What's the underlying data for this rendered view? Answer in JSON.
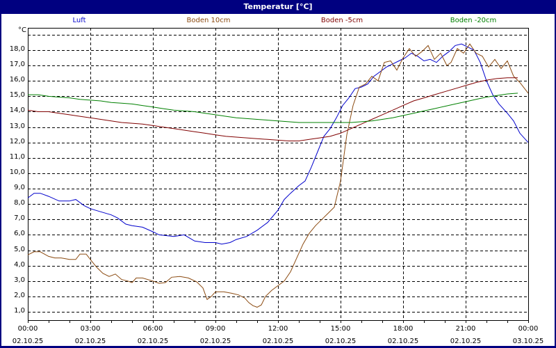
{
  "window": {
    "title": "Temperatur [°C]"
  },
  "chart_data": {
    "type": "line",
    "title": "Temperatur [°C]",
    "xlabel": "",
    "ylabel": "°C",
    "ylim": [
      0.5,
      19.5
    ],
    "xlim_hours": [
      0,
      24
    ],
    "grid": true,
    "legend_position": "top",
    "y_ticks": [
      "1,0",
      "2,0",
      "3,0",
      "4,0",
      "5,0",
      "6,0",
      "7,0",
      "8,0",
      "9,0",
      "10,0",
      "11,0",
      "12,0",
      "13,0",
      "14,0",
      "15,0",
      "16,0",
      "17,0",
      "18,0"
    ],
    "x_ticks": [
      {
        "time": "00:00",
        "date": "02.10.25"
      },
      {
        "time": "03:00",
        "date": "02.10.25"
      },
      {
        "time": "06:00",
        "date": "02.10.25"
      },
      {
        "time": "09:00",
        "date": "02.10.25"
      },
      {
        "time": "12:00",
        "date": "02.10.25"
      },
      {
        "time": "15:00",
        "date": "02.10.25"
      },
      {
        "time": "18:00",
        "date": "02.10.25"
      },
      {
        "time": "21:00",
        "date": "02.10.25"
      },
      {
        "time": "00:00",
        "date": "03.10.25"
      }
    ],
    "series": [
      {
        "name": "Luft",
        "color": "#0000CC",
        "points": [
          [
            0,
            8.4
          ],
          [
            0.3,
            8.7
          ],
          [
            0.6,
            8.7
          ],
          [
            1.0,
            8.5
          ],
          [
            1.5,
            8.2
          ],
          [
            2.0,
            8.2
          ],
          [
            2.3,
            8.3
          ],
          [
            2.7,
            7.9
          ],
          [
            3.0,
            7.7
          ],
          [
            3.5,
            7.5
          ],
          [
            4.0,
            7.3
          ],
          [
            4.3,
            7.1
          ],
          [
            4.7,
            6.7
          ],
          [
            5.0,
            6.6
          ],
          [
            5.5,
            6.5
          ],
          [
            6.0,
            6.2
          ],
          [
            6.3,
            6.0
          ],
          [
            7.0,
            5.9
          ],
          [
            7.5,
            6.0
          ],
          [
            8.0,
            5.6
          ],
          [
            8.5,
            5.5
          ],
          [
            9.0,
            5.5
          ],
          [
            9.3,
            5.4
          ],
          [
            9.7,
            5.5
          ],
          [
            10.0,
            5.7
          ],
          [
            10.5,
            5.9
          ],
          [
            11.0,
            6.3
          ],
          [
            11.5,
            6.8
          ],
          [
            12.0,
            7.6
          ],
          [
            12.3,
            8.3
          ],
          [
            12.6,
            8.7
          ],
          [
            13.0,
            9.2
          ],
          [
            13.3,
            9.5
          ],
          [
            13.6,
            10.4
          ],
          [
            13.9,
            11.4
          ],
          [
            14.2,
            12.4
          ],
          [
            14.5,
            12.9
          ],
          [
            14.8,
            13.6
          ],
          [
            15.1,
            14.4
          ],
          [
            15.4,
            14.9
          ],
          [
            15.7,
            15.5
          ],
          [
            16.0,
            15.6
          ],
          [
            16.3,
            15.8
          ],
          [
            16.6,
            16.3
          ],
          [
            16.9,
            16.6
          ],
          [
            17.2,
            16.9
          ],
          [
            17.5,
            17.1
          ],
          [
            17.8,
            17.3
          ],
          [
            18.1,
            17.5
          ],
          [
            18.4,
            17.8
          ],
          [
            18.7,
            17.6
          ],
          [
            19.0,
            17.3
          ],
          [
            19.3,
            17.4
          ],
          [
            19.6,
            17.2
          ],
          [
            19.9,
            17.6
          ],
          [
            20.2,
            17.9
          ],
          [
            20.5,
            18.3
          ],
          [
            20.8,
            18.4
          ],
          [
            21.1,
            18.2
          ],
          [
            21.4,
            18.0
          ],
          [
            21.7,
            17.2
          ],
          [
            22.0,
            16.0
          ],
          [
            22.3,
            15.1
          ],
          [
            22.6,
            14.5
          ],
          [
            23.0,
            13.9
          ],
          [
            23.3,
            13.4
          ],
          [
            23.6,
            12.6
          ],
          [
            24.0,
            12.0
          ]
        ]
      },
      {
        "name": "Boden 10cm",
        "color": "#8B4A10",
        "points": [
          [
            0,
            4.7
          ],
          [
            0.3,
            4.9
          ],
          [
            0.6,
            4.9
          ],
          [
            1.0,
            4.6
          ],
          [
            1.3,
            4.5
          ],
          [
            1.6,
            4.5
          ],
          [
            2.0,
            4.4
          ],
          [
            2.3,
            4.4
          ],
          [
            2.5,
            4.75
          ],
          [
            2.8,
            4.75
          ],
          [
            3.0,
            4.4
          ],
          [
            3.3,
            3.9
          ],
          [
            3.6,
            3.5
          ],
          [
            3.9,
            3.3
          ],
          [
            4.2,
            3.45
          ],
          [
            4.5,
            3.1
          ],
          [
            4.8,
            3.0
          ],
          [
            5.0,
            2.9
          ],
          [
            5.2,
            3.2
          ],
          [
            5.5,
            3.2
          ],
          [
            6.0,
            3.0
          ],
          [
            6.3,
            2.85
          ],
          [
            6.6,
            2.9
          ],
          [
            6.9,
            3.25
          ],
          [
            7.3,
            3.3
          ],
          [
            7.7,
            3.2
          ],
          [
            8.1,
            2.95
          ],
          [
            8.4,
            2.55
          ],
          [
            8.6,
            1.8
          ],
          [
            8.8,
            2.0
          ],
          [
            9.0,
            2.3
          ],
          [
            9.4,
            2.3
          ],
          [
            9.8,
            2.2
          ],
          [
            10.1,
            2.1
          ],
          [
            10.4,
            1.9
          ],
          [
            10.6,
            1.6
          ],
          [
            10.8,
            1.4
          ],
          [
            11.0,
            1.3
          ],
          [
            11.2,
            1.45
          ],
          [
            11.4,
            2.0
          ],
          [
            11.7,
            2.4
          ],
          [
            12.0,
            2.7
          ],
          [
            12.3,
            3.0
          ],
          [
            12.6,
            3.6
          ],
          [
            12.9,
            4.5
          ],
          [
            13.2,
            5.4
          ],
          [
            13.5,
            6.1
          ],
          [
            13.8,
            6.6
          ],
          [
            14.1,
            7.0
          ],
          [
            14.4,
            7.4
          ],
          [
            14.7,
            7.8
          ],
          [
            15.0,
            9.5
          ],
          [
            15.3,
            12.5
          ],
          [
            15.6,
            14.4
          ],
          [
            15.9,
            15.6
          ],
          [
            16.2,
            15.8
          ],
          [
            16.5,
            16.3
          ],
          [
            16.8,
            16.0
          ],
          [
            17.1,
            17.2
          ],
          [
            17.4,
            17.3
          ],
          [
            17.7,
            16.7
          ],
          [
            18.0,
            17.5
          ],
          [
            18.3,
            18.1
          ],
          [
            18.6,
            17.6
          ],
          [
            18.9,
            17.9
          ],
          [
            19.2,
            18.3
          ],
          [
            19.5,
            17.4
          ],
          [
            19.8,
            17.8
          ],
          [
            20.1,
            17.0
          ],
          [
            20.3,
            17.2
          ],
          [
            20.6,
            18.1
          ],
          [
            20.9,
            17.8
          ],
          [
            21.2,
            18.4
          ],
          [
            21.5,
            17.8
          ],
          [
            21.8,
            17.6
          ],
          [
            22.1,
            16.9
          ],
          [
            22.4,
            17.4
          ],
          [
            22.7,
            16.8
          ],
          [
            23.0,
            17.3
          ],
          [
            23.3,
            16.3
          ],
          [
            23.6,
            15.9
          ],
          [
            24.0,
            15.2
          ]
        ]
      },
      {
        "name": "Boden -5cm",
        "color": "#800000",
        "points": [
          [
            0,
            14.1
          ],
          [
            0.5,
            14.0
          ],
          [
            1.0,
            14.0
          ],
          [
            1.5,
            13.9
          ],
          [
            2.0,
            13.8
          ],
          [
            2.5,
            13.7
          ],
          [
            3.0,
            13.6
          ],
          [
            3.5,
            13.5
          ],
          [
            4.0,
            13.4
          ],
          [
            4.5,
            13.3
          ],
          [
            5.0,
            13.25
          ],
          [
            5.5,
            13.2
          ],
          [
            6.0,
            13.1
          ],
          [
            6.5,
            13.0
          ],
          [
            7.0,
            12.9
          ],
          [
            7.5,
            12.8
          ],
          [
            8.0,
            12.7
          ],
          [
            8.5,
            12.6
          ],
          [
            9.0,
            12.5
          ],
          [
            9.5,
            12.4
          ],
          [
            10.0,
            12.35
          ],
          [
            10.5,
            12.3
          ],
          [
            11.0,
            12.25
          ],
          [
            11.5,
            12.2
          ],
          [
            12.0,
            12.15
          ],
          [
            12.5,
            12.1
          ],
          [
            13.0,
            12.1
          ],
          [
            13.5,
            12.2
          ],
          [
            14.0,
            12.3
          ],
          [
            14.5,
            12.4
          ],
          [
            15.0,
            12.6
          ],
          [
            15.5,
            12.9
          ],
          [
            16.0,
            13.2
          ],
          [
            16.5,
            13.5
          ],
          [
            17.0,
            13.8
          ],
          [
            17.5,
            14.1
          ],
          [
            18.0,
            14.4
          ],
          [
            18.5,
            14.7
          ],
          [
            19.0,
            14.9
          ],
          [
            19.5,
            15.1
          ],
          [
            20.0,
            15.3
          ],
          [
            20.5,
            15.5
          ],
          [
            21.0,
            15.7
          ],
          [
            21.5,
            15.9
          ],
          [
            22.0,
            16.05
          ],
          [
            22.5,
            16.15
          ],
          [
            23.0,
            16.2
          ],
          [
            23.5,
            16.2
          ]
        ]
      },
      {
        "name": "Boden -20cm",
        "color": "#008000",
        "points": [
          [
            0,
            15.1
          ],
          [
            0.5,
            15.1
          ],
          [
            1.0,
            15.0
          ],
          [
            1.5,
            14.95
          ],
          [
            2.0,
            14.9
          ],
          [
            2.5,
            14.8
          ],
          [
            3.0,
            14.75
          ],
          [
            3.5,
            14.7
          ],
          [
            4.0,
            14.6
          ],
          [
            4.5,
            14.55
          ],
          [
            5.0,
            14.5
          ],
          [
            5.5,
            14.4
          ],
          [
            6.0,
            14.3
          ],
          [
            6.5,
            14.2
          ],
          [
            7.0,
            14.1
          ],
          [
            7.5,
            14.05
          ],
          [
            8.0,
            14.0
          ],
          [
            8.5,
            13.9
          ],
          [
            9.0,
            13.8
          ],
          [
            9.5,
            13.7
          ],
          [
            10.0,
            13.6
          ],
          [
            10.5,
            13.55
          ],
          [
            11.0,
            13.5
          ],
          [
            11.5,
            13.45
          ],
          [
            12.0,
            13.4
          ],
          [
            12.5,
            13.35
          ],
          [
            13.0,
            13.3
          ],
          [
            13.5,
            13.3
          ],
          [
            14.0,
            13.3
          ],
          [
            14.5,
            13.3
          ],
          [
            15.0,
            13.3
          ],
          [
            15.5,
            13.3
          ],
          [
            16.0,
            13.35
          ],
          [
            16.5,
            13.4
          ],
          [
            17.0,
            13.5
          ],
          [
            17.5,
            13.6
          ],
          [
            18.0,
            13.75
          ],
          [
            18.5,
            13.9
          ],
          [
            19.0,
            14.05
          ],
          [
            19.5,
            14.2
          ],
          [
            20.0,
            14.35
          ],
          [
            20.5,
            14.5
          ],
          [
            21.0,
            14.65
          ],
          [
            21.5,
            14.8
          ],
          [
            22.0,
            14.95
          ],
          [
            22.5,
            15.05
          ],
          [
            23.0,
            15.15
          ],
          [
            23.5,
            15.2
          ]
        ]
      }
    ]
  }
}
